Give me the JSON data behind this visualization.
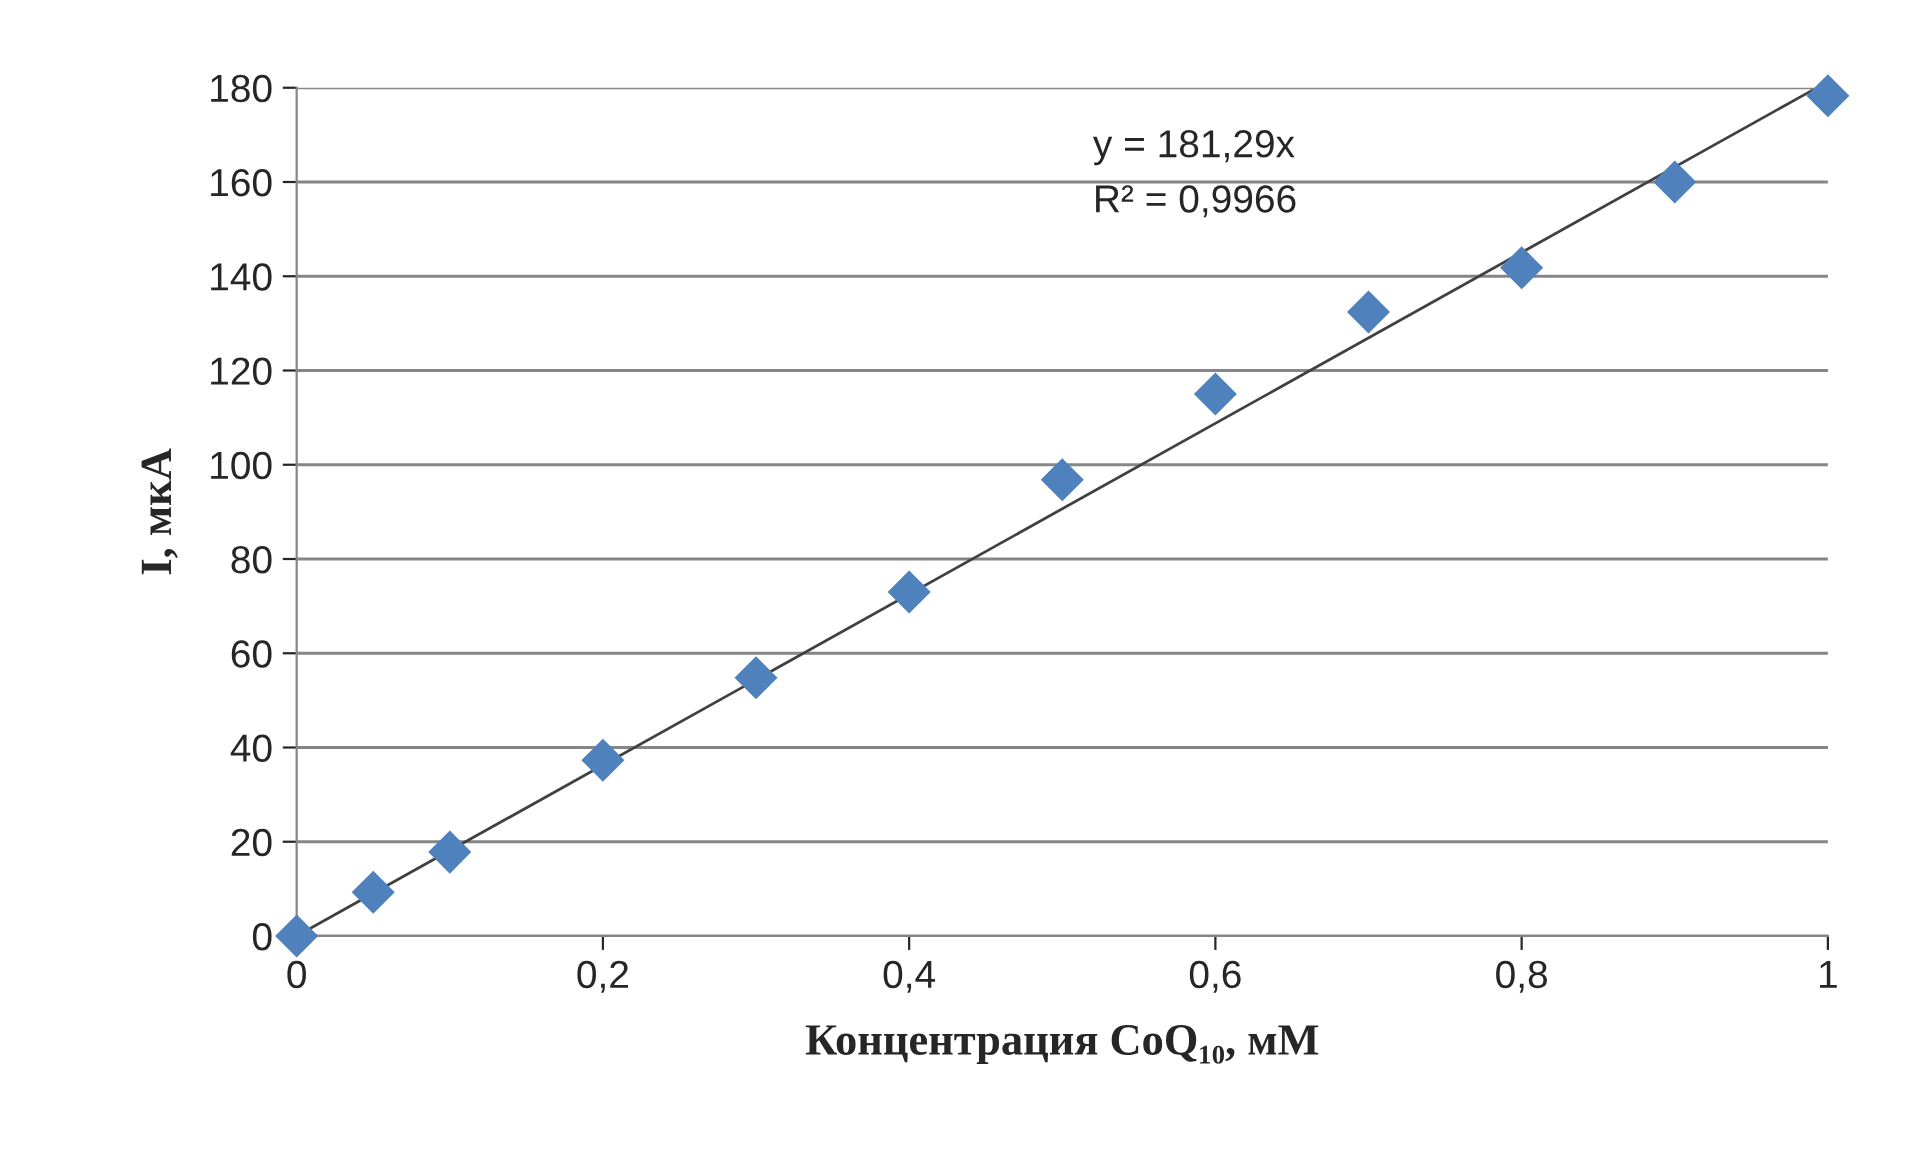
{
  "chart_data": {
    "type": "scatter",
    "xlabel": "Концентрация CoQ₁₀, мМ",
    "ylabel": "I, мкА",
    "annotations": [
      "y = 181,29x",
      "R² = 0,9966"
    ],
    "series": [
      {
        "color": "#4f81bd",
        "marker": "diamond",
        "x": [
          0,
          0.05,
          0.1,
          0.2,
          0.3,
          0.4,
          0.5,
          0.6,
          0.7,
          0.8,
          0.9,
          1.0
        ],
        "values": [
          0,
          9.3,
          17.8,
          37.3,
          54.8,
          73,
          96.8,
          115,
          132.4,
          141.8,
          160,
          178.3
        ]
      },
      {
        "type": "line",
        "color": "#404040",
        "marker": "none",
        "line_style": "solid",
        "x": [
          0,
          0.99
        ],
        "values": [
          0,
          179.5
        ]
      }
    ],
    "xlim": [
      0,
      1
    ],
    "ylim": [
      0,
      180
    ],
    "xticks": [
      0,
      {
        "value": 0.2,
        "label": "0,2"
      },
      {
        "value": 0.4,
        "label": "0,4"
      },
      {
        "value": 0.6,
        "label": "0,6"
      },
      {
        "value": 0.8,
        "label": "0,8"
      },
      1
    ],
    "yticks": [
      0,
      20,
      40,
      60,
      80,
      100,
      120,
      140,
      160,
      180
    ],
    "grid": "y",
    "legend": false
  }
}
